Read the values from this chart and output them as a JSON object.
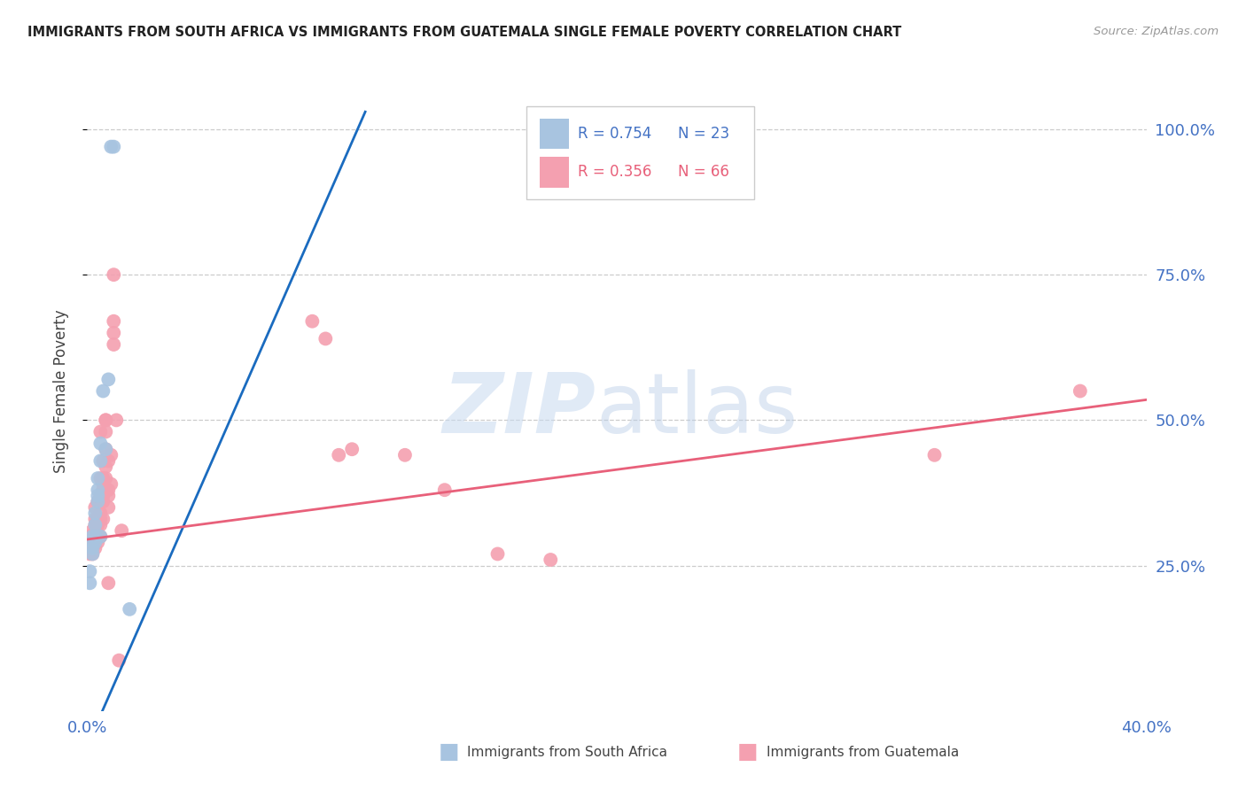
{
  "title": "IMMIGRANTS FROM SOUTH AFRICA VS IMMIGRANTS FROM GUATEMALA SINGLE FEMALE POVERTY CORRELATION CHART",
  "source": "Source: ZipAtlas.com",
  "ylabel": "Single Female Poverty",
  "right_yticks": [
    "100.0%",
    "75.0%",
    "50.0%",
    "25.0%"
  ],
  "right_ytick_vals": [
    1.0,
    0.75,
    0.5,
    0.25
  ],
  "legend_blue_r": "R = 0.754",
  "legend_blue_n": "N = 23",
  "legend_pink_r": "R = 0.356",
  "legend_pink_n": "N = 66",
  "legend_blue_label": "Immigrants from South Africa",
  "legend_pink_label": "Immigrants from Guatemala",
  "blue_color": "#a8c4e0",
  "pink_color": "#f4a0b0",
  "blue_line_color": "#1a6bbf",
  "pink_line_color": "#e8607a",
  "blue_scatter": [
    [
      0.001,
      0.22
    ],
    [
      0.001,
      0.24
    ],
    [
      0.002,
      0.28
    ],
    [
      0.002,
      0.29
    ],
    [
      0.002,
      0.3
    ],
    [
      0.002,
      0.27
    ],
    [
      0.003,
      0.29
    ],
    [
      0.003,
      0.3
    ],
    [
      0.003,
      0.32
    ],
    [
      0.003,
      0.34
    ],
    [
      0.004,
      0.36
    ],
    [
      0.004,
      0.38
    ],
    [
      0.004,
      0.4
    ],
    [
      0.004,
      0.37
    ],
    [
      0.005,
      0.43
    ],
    [
      0.005,
      0.3
    ],
    [
      0.005,
      0.46
    ],
    [
      0.006,
      0.55
    ],
    [
      0.007,
      0.45
    ],
    [
      0.008,
      0.57
    ],
    [
      0.009,
      0.97
    ],
    [
      0.01,
      0.97
    ],
    [
      0.016,
      0.175
    ]
  ],
  "pink_scatter": [
    [
      0.001,
      0.27
    ],
    [
      0.001,
      0.28
    ],
    [
      0.001,
      0.29
    ],
    [
      0.001,
      0.3
    ],
    [
      0.002,
      0.27
    ],
    [
      0.002,
      0.28
    ],
    [
      0.002,
      0.29
    ],
    [
      0.002,
      0.3
    ],
    [
      0.002,
      0.31
    ],
    [
      0.003,
      0.28
    ],
    [
      0.003,
      0.29
    ],
    [
      0.003,
      0.3
    ],
    [
      0.003,
      0.31
    ],
    [
      0.003,
      0.32
    ],
    [
      0.003,
      0.33
    ],
    [
      0.003,
      0.35
    ],
    [
      0.004,
      0.29
    ],
    [
      0.004,
      0.3
    ],
    [
      0.004,
      0.32
    ],
    [
      0.004,
      0.33
    ],
    [
      0.004,
      0.36
    ],
    [
      0.005,
      0.3
    ],
    [
      0.005,
      0.32
    ],
    [
      0.005,
      0.33
    ],
    [
      0.005,
      0.34
    ],
    [
      0.005,
      0.37
    ],
    [
      0.005,
      0.4
    ],
    [
      0.005,
      0.48
    ],
    [
      0.006,
      0.33
    ],
    [
      0.006,
      0.36
    ],
    [
      0.006,
      0.37
    ],
    [
      0.006,
      0.38
    ],
    [
      0.006,
      0.39
    ],
    [
      0.006,
      0.4
    ],
    [
      0.006,
      0.43
    ],
    [
      0.007,
      0.38
    ],
    [
      0.007,
      0.4
    ],
    [
      0.007,
      0.42
    ],
    [
      0.007,
      0.45
    ],
    [
      0.007,
      0.48
    ],
    [
      0.007,
      0.5
    ],
    [
      0.007,
      0.5
    ],
    [
      0.008,
      0.37
    ],
    [
      0.008,
      0.22
    ],
    [
      0.008,
      0.35
    ],
    [
      0.008,
      0.38
    ],
    [
      0.008,
      0.43
    ],
    [
      0.009,
      0.39
    ],
    [
      0.009,
      0.44
    ],
    [
      0.01,
      0.65
    ],
    [
      0.01,
      0.63
    ],
    [
      0.01,
      0.67
    ],
    [
      0.01,
      0.75
    ],
    [
      0.011,
      0.5
    ],
    [
      0.012,
      0.087
    ],
    [
      0.013,
      0.31
    ],
    [
      0.085,
      0.67
    ],
    [
      0.09,
      0.64
    ],
    [
      0.095,
      0.44
    ],
    [
      0.1,
      0.45
    ],
    [
      0.12,
      0.44
    ],
    [
      0.135,
      0.38
    ],
    [
      0.155,
      0.27
    ],
    [
      0.175,
      0.26
    ],
    [
      0.32,
      0.44
    ],
    [
      0.375,
      0.55
    ]
  ],
  "xlim": [
    0.0,
    0.4
  ],
  "ylim": [
    0.0,
    1.1
  ],
  "blue_line_x": [
    -0.002,
    0.105
  ],
  "blue_line_y": [
    -0.08,
    1.03
  ],
  "pink_line_x": [
    0.0,
    0.4
  ],
  "pink_line_y": [
    0.295,
    0.535
  ]
}
